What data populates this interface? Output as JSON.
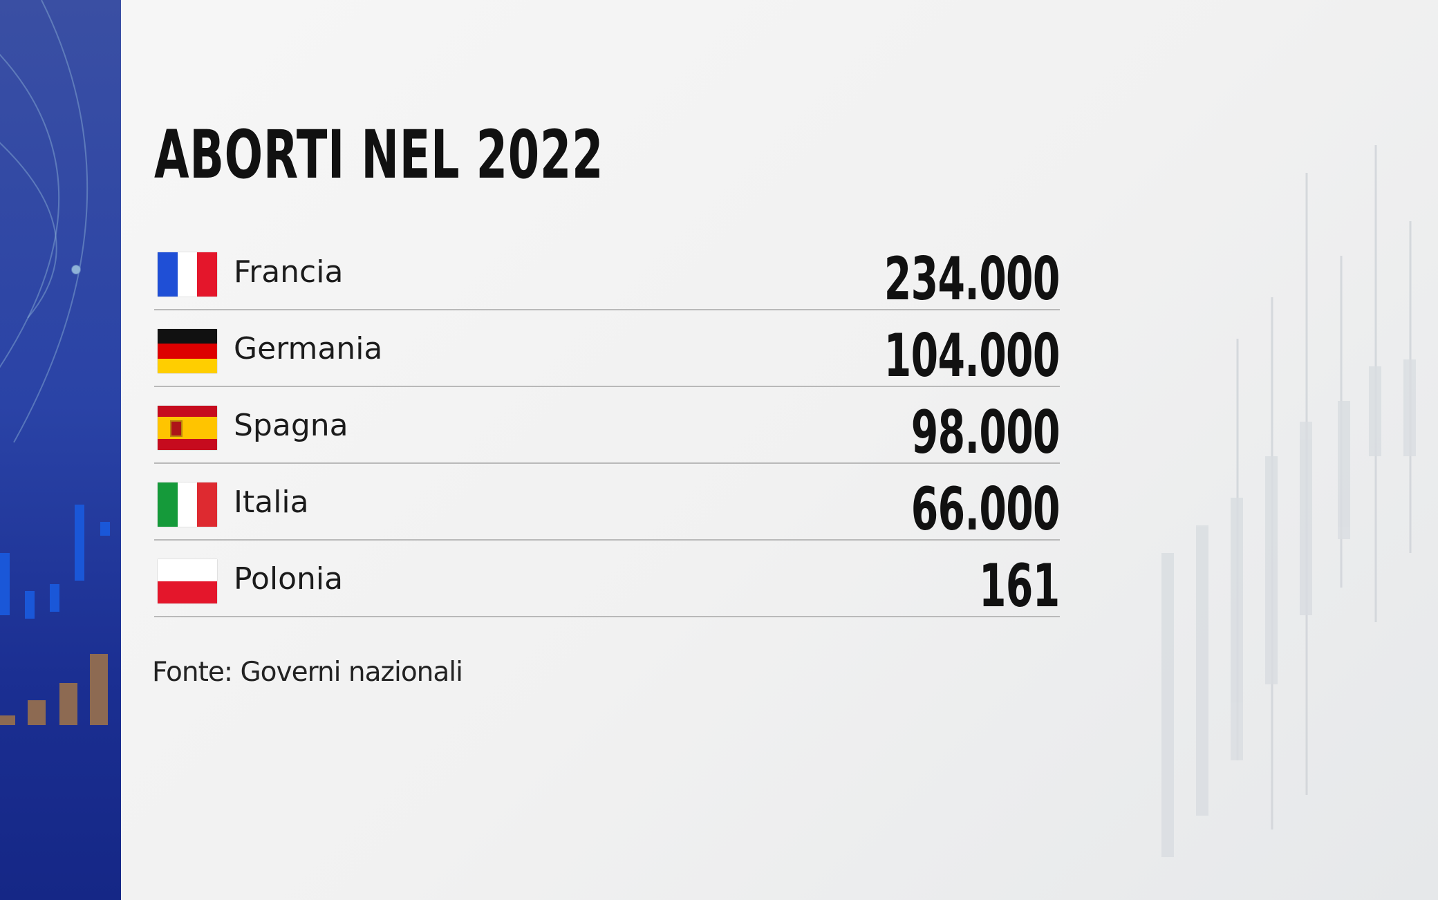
{
  "header": {
    "title": "ABORTI NEL 2022"
  },
  "table": {
    "rows": [
      [
        "Francia",
        "234.000"
      ],
      [
        "Germania",
        "104.000"
      ],
      [
        "Spagna",
        "98.000"
      ],
      [
        "Italia",
        "66.000"
      ],
      [
        "Polonia",
        "161"
      ]
    ]
  },
  "footer": {
    "source": "Fonte: Governi nazionali"
  }
}
